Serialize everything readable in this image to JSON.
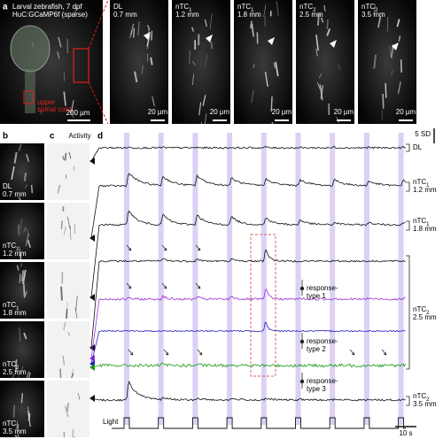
{
  "panels": {
    "a": "a",
    "b": "b",
    "c": "c",
    "d": "d"
  },
  "overview": {
    "title_lines": [
      "Larval zebrafish, 7 dpf",
      "HuC:GCaMP6f (sparse)"
    ],
    "label_lines": [
      "upper",
      "spinal cord"
    ],
    "scale": "200 µm"
  },
  "zoom": [
    {
      "name": "DL",
      "depth": "0.7 mm",
      "scale": "20 µm"
    },
    {
      "name": "nTC",
      "sub": "1",
      "depth": "1.2 mm",
      "scale": "20 µm"
    },
    {
      "name": "nTC",
      "sub": "1",
      "depth": "1.8 mm",
      "scale": "20 µm"
    },
    {
      "name": "nTC",
      "sub": "2",
      "depth": "2.5 mm",
      "scale": "20 µm"
    },
    {
      "name": "nTC",
      "sub": "2",
      "depth": "3.5 mm",
      "scale": "20 µm"
    }
  ],
  "column_b": [
    {
      "name": "DL",
      "depth": "0.7 mm"
    },
    {
      "name": "nTC",
      "sub": "1",
      "depth": "1.2 mm"
    },
    {
      "name": "nTC",
      "sub": "1",
      "depth": "1.8 mm"
    },
    {
      "name": "nTC",
      "sub": "2",
      "depth": "2.5 mm"
    },
    {
      "name": "nTC",
      "sub": "2",
      "depth": "3.5 mm"
    }
  ],
  "activity": "Activity",
  "traces": {
    "scale": "5 SD",
    "labels": [
      {
        "name": "DL"
      },
      {
        "name": "nTC",
        "sub": "1",
        "depth": "1.2 mm"
      },
      {
        "name": "nTC",
        "sub": "1",
        "depth": "1.8 mm"
      },
      {
        "name": "nTC",
        "sub": "2",
        "depth": "2.5 mm"
      },
      {
        "name": "nTC",
        "sub": "2",
        "depth": "3.5 mm"
      }
    ],
    "response_types": [
      [
        "response-",
        "type 1"
      ],
      [
        "response-",
        "type 2"
      ],
      [
        "response-",
        "type 3"
      ]
    ],
    "light": "Light",
    "time_scale": "10 s"
  }
}
